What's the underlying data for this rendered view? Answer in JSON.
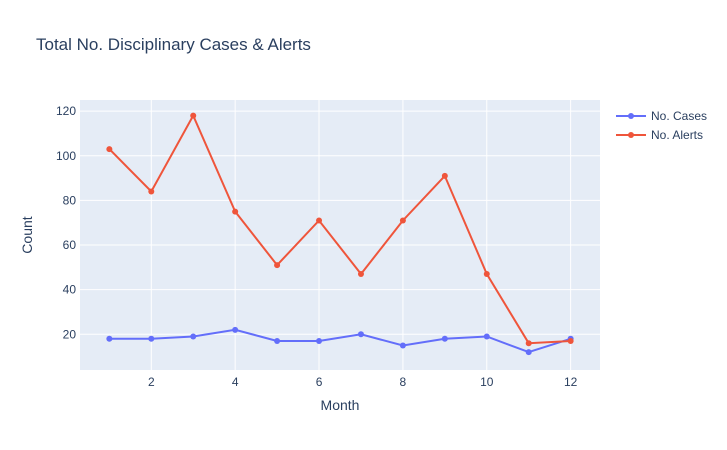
{
  "chart_data": {
    "type": "line",
    "title": "Total No. Disciplinary Cases & Alerts",
    "xlabel": "Month",
    "ylabel": "Count",
    "x": [
      1,
      2,
      3,
      4,
      5,
      6,
      7,
      8,
      9,
      10,
      11,
      12
    ],
    "xlim": [
      0.3,
      12.7
    ],
    "ylim": [
      4,
      125
    ],
    "xticks": [
      2,
      4,
      6,
      8,
      10,
      12
    ],
    "yticks": [
      20,
      40,
      60,
      80,
      100,
      120
    ],
    "grid": true,
    "legend_position": "top-right",
    "series": [
      {
        "name": "No. Cases",
        "color": "#636efa",
        "values": [
          18,
          18,
          19,
          22,
          17,
          17,
          20,
          15,
          18,
          19,
          12,
          18
        ]
      },
      {
        "name": "No. Alerts",
        "color": "#ef553b",
        "values": [
          103,
          84,
          118,
          75,
          51,
          71,
          47,
          71,
          91,
          47,
          16,
          17
        ]
      }
    ]
  }
}
